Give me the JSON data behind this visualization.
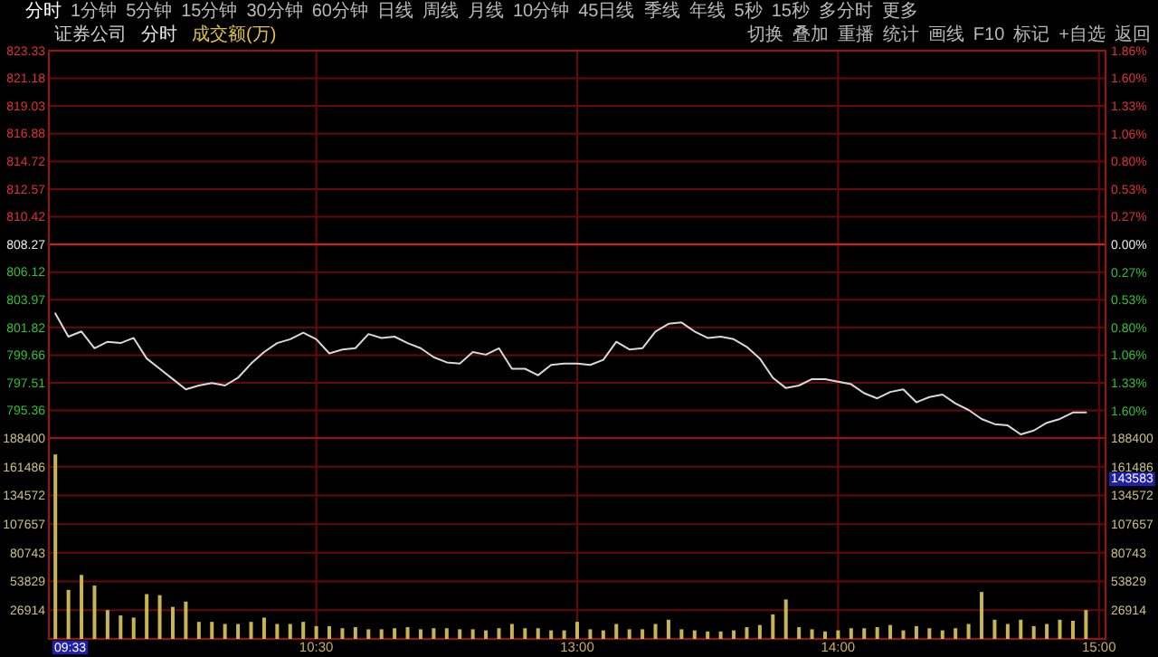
{
  "chart_data": [
    {
      "type": "line",
      "title": "证券公司",
      "subtitle": "分时",
      "annotations": [
        "分时",
        "1分钟",
        "5分钟",
        "15分钟",
        "30分钟",
        "60分钟",
        "日线",
        "周线",
        "月线",
        "10分钟",
        "45日线",
        "季线",
        "年线",
        "5秒",
        "15秒",
        "多分时",
        "更多",
        "切换",
        "叠加",
        "重播",
        "统计",
        "画线",
        "F10",
        "标记",
        "+自选",
        "返回",
        "成交额(万)"
      ],
      "categories": [
        null,
        null,
        null,
        null,
        null,
        null,
        null,
        null,
        null,
        null,
        null,
        null,
        null,
        null,
        null,
        null,
        null,
        null,
        null,
        null,
        null,
        null,
        null,
        null,
        null,
        null,
        null,
        null,
        null,
        null,
        null,
        null,
        null,
        null,
        null,
        null,
        null,
        null,
        null,
        null,
        null,
        null,
        null,
        null,
        null,
        null,
        null,
        null,
        null,
        null,
        null,
        null,
        null,
        null,
        null,
        null,
        null,
        null,
        null,
        null,
        null,
        null,
        null,
        null,
        null,
        null,
        null,
        null,
        null,
        null,
        null,
        null,
        null,
        null,
        null,
        null,
        null,
        null,
        null,
        null,
        null
      ],
      "series": [
        {
          "color": "#d8d8d8",
          "values": [
            802.9,
            801.1,
            801.5,
            800.2,
            800.7,
            800.6,
            801.0,
            799.4,
            798.6,
            797.8,
            797.0,
            797.3,
            797.5,
            797.3,
            797.9,
            799.0,
            799.9,
            800.6,
            800.9,
            801.4,
            800.9,
            799.8,
            800.1,
            800.2,
            801.3,
            801.0,
            801.1,
            800.6,
            800.2,
            799.5,
            799.1,
            799.0,
            799.9,
            799.7,
            800.2,
            798.6,
            798.6,
            798.1,
            798.9,
            799.0,
            799.0,
            798.9,
            799.3,
            800.7,
            800.1,
            800.2,
            801.5,
            802.1,
            802.2,
            801.5,
            801.0,
            801.1,
            800.9,
            800.3,
            799.4,
            797.9,
            797.1,
            797.3,
            797.8,
            797.8,
            797.6,
            797.4,
            796.7,
            796.3,
            796.8,
            797.0,
            796.0,
            796.4,
            796.6,
            795.9,
            795.4,
            794.7,
            794.3,
            794.2,
            793.5,
            793.8,
            794.4,
            794.7,
            795.2,
            795.2,
            null
          ]
        }
      ],
      "ylim": [
        793.22,
        823.33
      ],
      "yticks": [
        823.33,
        821.18,
        819.03,
        816.88,
        814.72,
        812.57,
        810.42,
        808.27,
        806.12,
        803.97,
        801.82,
        799.66,
        797.51,
        795.36
      ],
      "y2lim": [
        -1.86,
        1.86
      ],
      "y2ticks": [
        {
          "value": 1.86,
          "label": "1.86%"
        },
        {
          "value": 1.6,
          "label": "1.60%"
        },
        {
          "value": 1.33,
          "label": "1.33%"
        },
        {
          "value": 1.06,
          "label": "1.06%"
        },
        {
          "value": 0.8,
          "label": "0.80%"
        },
        {
          "value": 0.53,
          "label": "0.53%"
        },
        {
          "value": 0.27,
          "label": "0.27%"
        },
        {
          "value": 0,
          "label": "0.00%"
        },
        {
          "value": -0.27,
          "label": "0.27%"
        },
        {
          "value": -0.53,
          "label": "0.53%"
        },
        {
          "value": -0.8,
          "label": "0.80%"
        },
        {
          "value": -1.06,
          "label": "1.06%"
        },
        {
          "value": -1.33,
          "label": "1.33%"
        },
        {
          "value": -1.6,
          "label": "1.60%"
        }
      ],
      "grid": true,
      "tick_labels": "y",
      "ref_lines": [
        {
          "axis": "y",
          "value": 808.27,
          "color": "#e01818"
        }
      ]
    },
    {
      "type": "bar",
      "categories": [
        null,
        null,
        null,
        null,
        null,
        null,
        null,
        null,
        null,
        null,
        null,
        null,
        null,
        null,
        null,
        null,
        null,
        null,
        null,
        null,
        "10:30",
        null,
        null,
        null,
        null,
        null,
        null,
        null,
        null,
        null,
        null,
        null,
        null,
        null,
        null,
        null,
        null,
        null,
        null,
        null,
        "13:00",
        null,
        null,
        null,
        null,
        null,
        null,
        null,
        null,
        null,
        null,
        null,
        null,
        null,
        null,
        null,
        null,
        null,
        null,
        null,
        "14:00",
        null,
        null,
        null,
        null,
        null,
        null,
        null,
        null,
        null,
        null,
        null,
        null,
        null,
        null,
        null,
        null,
        null,
        null,
        null,
        "15:00"
      ],
      "values": [
        173000,
        46000,
        60000,
        50000,
        27000,
        22000,
        20000,
        42000,
        41000,
        30000,
        35000,
        16000,
        16000,
        14000,
        14000,
        16000,
        20000,
        14000,
        14000,
        16000,
        12000,
        12000,
        10000,
        11000,
        9000,
        9000,
        10000,
        11000,
        9000,
        10000,
        10000,
        9000,
        9000,
        8000,
        10000,
        14000,
        10000,
        10000,
        8000,
        8000,
        16000,
        9000,
        8000,
        14000,
        9000,
        9000,
        14000,
        18000,
        9000,
        8000,
        7000,
        7000,
        8000,
        11000,
        13000,
        23000,
        37000,
        11000,
        9000,
        7000,
        8000,
        10000,
        10000,
        11000,
        13000,
        8000,
        12000,
        10000,
        8000,
        10000,
        14000,
        44000,
        18000,
        14000,
        18000,
        12000,
        14000,
        18000,
        17000,
        27000,
        null
      ],
      "color": "#c8b450",
      "ylim": [
        0,
        188400
      ],
      "yticks": [
        188400,
        161486,
        134572,
        107657,
        80743,
        53829,
        26914
      ],
      "y2lim": [
        0,
        188400
      ],
      "y2ticks": [
        188400,
        161486,
        134572,
        107657,
        80743,
        53829,
        26914
      ],
      "grid": true,
      "annotations": [
        "09:33",
        "143583"
      ]
    }
  ]
}
